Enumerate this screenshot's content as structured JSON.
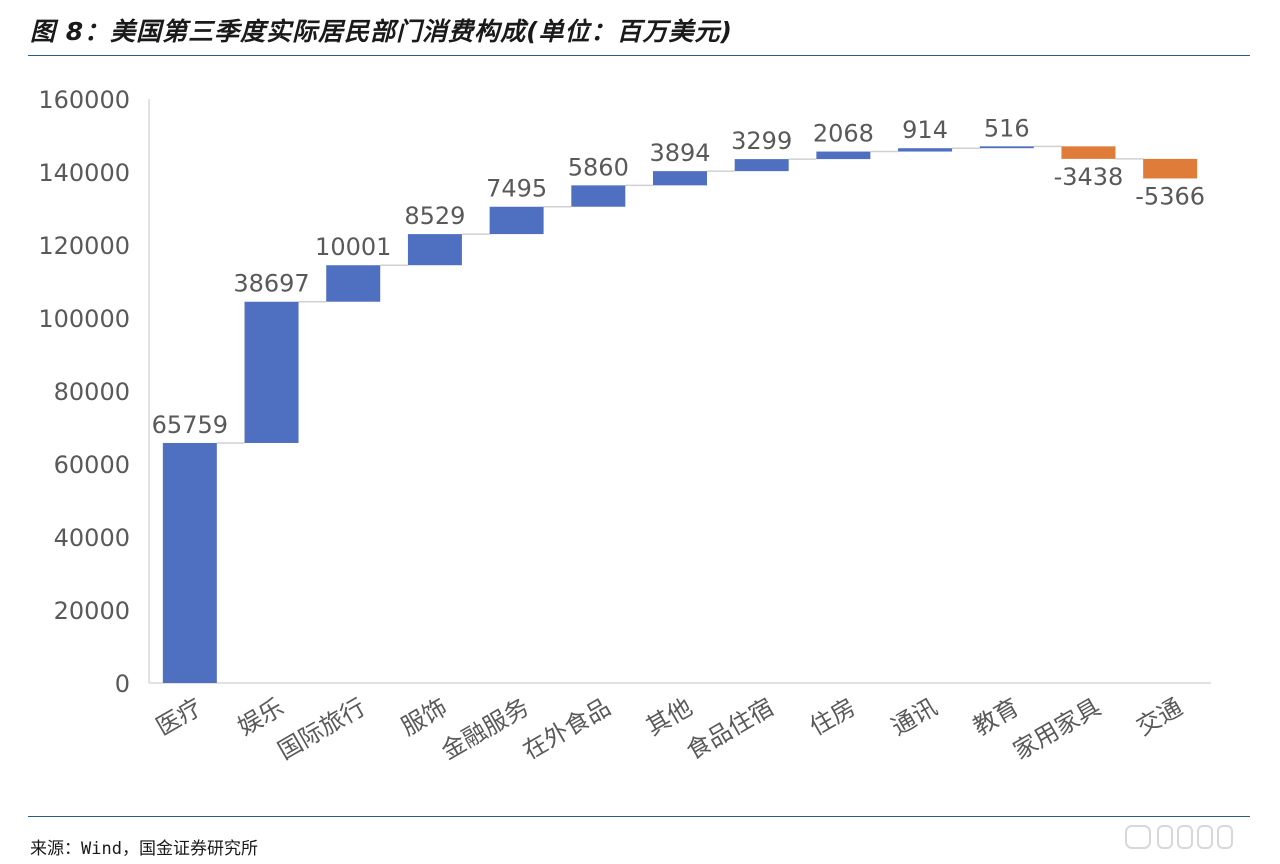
{
  "title": "图 8：美国第三季度实际居民部门消费构成(单位：百万美元)",
  "source": "来源：Wind，国金证券研究所",
  "colors": {
    "positive": "#4f70c0",
    "negative": "#e07c3a",
    "axis_text": "#595959",
    "connector": "#d0d0d0"
  },
  "chart_data": {
    "type": "bar",
    "subtype": "waterfall",
    "title": "",
    "xlabel": "",
    "ylabel": "",
    "ylim": [
      0,
      160000
    ],
    "yticks": [
      0,
      20000,
      40000,
      60000,
      80000,
      100000,
      120000,
      140000,
      160000
    ],
    "yticklabels": [
      "0",
      "20000",
      "40000",
      "60000",
      "80000",
      "100000",
      "120000",
      "140000",
      "160000"
    ],
    "grid": false,
    "legend": false,
    "categories": [
      "医疗",
      "娱乐",
      "国际旅行",
      "服饰",
      "金融服务",
      "在外食品",
      "其他",
      "食品住宿",
      "住房",
      "通讯",
      "教育",
      "家用家具",
      "交通"
    ],
    "values": [
      65759,
      38697,
      10001,
      8529,
      7495,
      5860,
      3894,
      3299,
      2068,
      914,
      516,
      -3438,
      -5366
    ],
    "value_labels": [
      "65759",
      "38697",
      "10001",
      "8529",
      "7495",
      "5860",
      "3894",
      "3299",
      "2068",
      "914",
      "516",
      "-3438",
      "-5366"
    ]
  }
}
